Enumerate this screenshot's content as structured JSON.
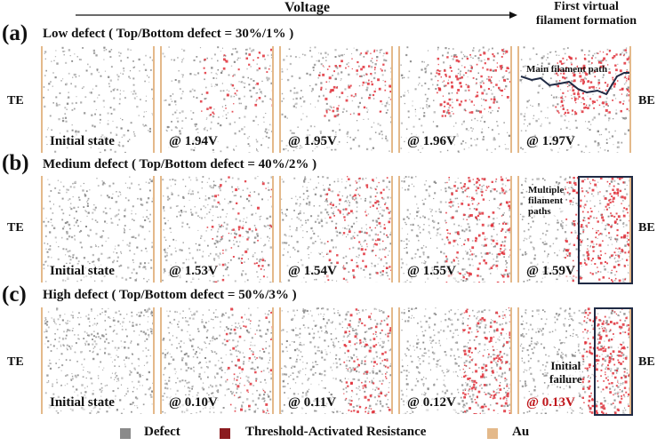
{
  "header": {
    "voltage_label": "Voltage",
    "first_line1": "First virtual",
    "first_line2": "filament formation"
  },
  "electrodes": {
    "left": "TE",
    "right": "BE"
  },
  "rows": [
    {
      "label": "(a)",
      "title": "Low defect ( Top/Bottom defect = 30%/1% )",
      "density": 0.3,
      "panels": [
        "Initial state",
        "@ 1.94V",
        "@ 1.95V",
        "@ 1.96V",
        "@ 1.97V"
      ],
      "annotation": "Main filament path"
    },
    {
      "label": "(b)",
      "title": "Medium defect ( Top/Bottom defect = 40%/2% )",
      "density": 0.4,
      "panels": [
        "Initial state",
        "@ 1.53V",
        "@ 1.54V",
        "@ 1.55V",
        "@ 1.59V"
      ],
      "annotation_lines": [
        "Multiple",
        "filament",
        "paths"
      ]
    },
    {
      "label": "(c)",
      "title": "High defect ( Top/Bottom defect = 50%/3% )",
      "density": 0.5,
      "panels": [
        "Initial state",
        "@ 0.10V",
        "@ 0.11V",
        "@ 0.12V",
        "@ 0.13V"
      ],
      "annotation_lines": [
        "Initial",
        "failure"
      ]
    }
  ],
  "legend": {
    "defect": "Defect",
    "threshold": "Threshold-Activated Resistance",
    "au": "Au"
  },
  "colors": {
    "defect": "#8a8a8a",
    "threshold": "#e0303a",
    "au": "#e4b98a",
    "box": "#1f2a44",
    "highlight": "#c0161b"
  }
}
